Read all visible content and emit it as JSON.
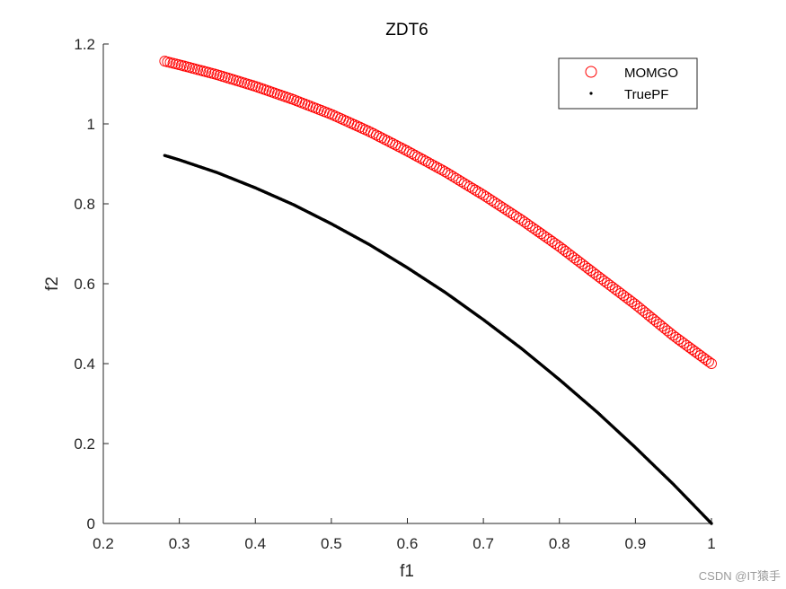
{
  "chart_data": {
    "type": "scatter",
    "title": "ZDT6",
    "xlabel": "f1",
    "ylabel": "f2",
    "xlim": [
      0.2,
      1.0
    ],
    "ylim": [
      0,
      1.2
    ],
    "xticks": [
      "0.2",
      "0.3",
      "0.4",
      "0.5",
      "0.6",
      "0.7",
      "0.8",
      "0.9",
      "1"
    ],
    "yticks": [
      "0",
      "0.2",
      "0.4",
      "0.6",
      "0.8",
      "1",
      "1.2"
    ],
    "legend_position": "top-right",
    "series": [
      {
        "name": "MOMGO",
        "marker": "open-circle",
        "color": "#ff0000",
        "x": [
          0.2808,
          0.3,
          0.35,
          0.4,
          0.45,
          0.5,
          0.55,
          0.6,
          0.65,
          0.7,
          0.75,
          0.8,
          0.85,
          0.9,
          0.95,
          1.0
        ],
        "y": [
          1.157,
          1.148,
          1.123,
          1.094,
          1.061,
          1.024,
          0.981,
          0.932,
          0.88,
          0.822,
          0.76,
          0.693,
          0.62,
          0.548,
          0.47,
          0.4
        ]
      },
      {
        "name": "TruePF",
        "marker": "dot",
        "color": "#000000",
        "x": [
          0.2808,
          0.3,
          0.35,
          0.4,
          0.45,
          0.5,
          0.55,
          0.6,
          0.65,
          0.7,
          0.75,
          0.8,
          0.85,
          0.9,
          0.95,
          1.0
        ],
        "y": [
          0.921,
          0.91,
          0.878,
          0.84,
          0.798,
          0.75,
          0.698,
          0.64,
          0.578,
          0.51,
          0.438,
          0.36,
          0.278,
          0.19,
          0.098,
          0.0
        ]
      }
    ]
  },
  "watermark": "CSDN @IT猿手"
}
